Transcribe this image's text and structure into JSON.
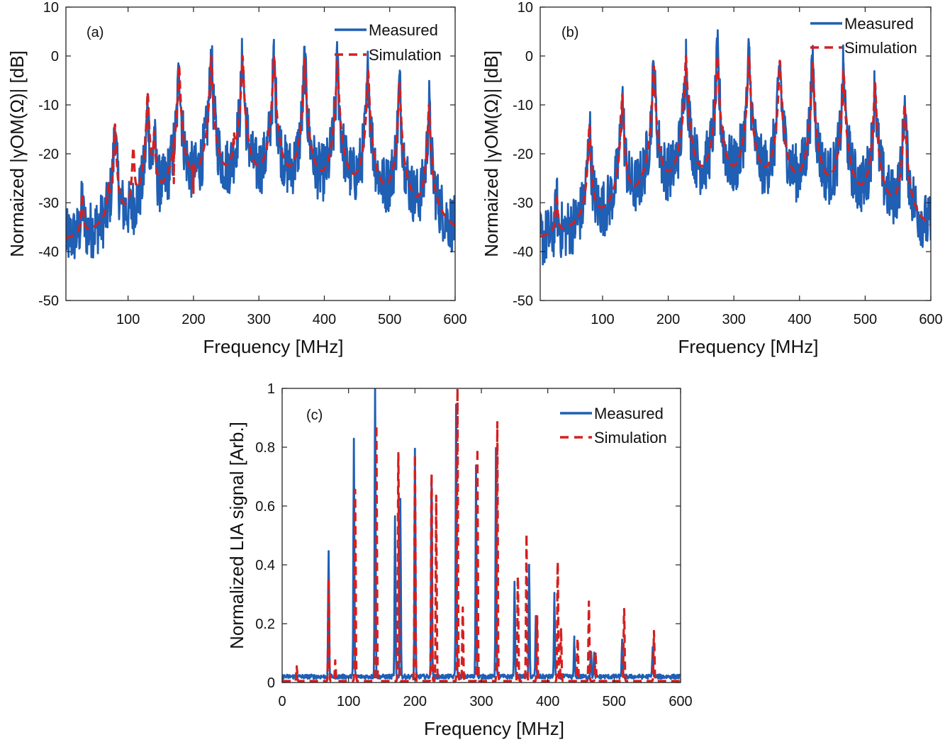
{
  "chart_data": [
    {
      "panel": "(a)",
      "type": "line",
      "xlabel": "Frequency [MHz]",
      "ylabel": "Normaized |γOM(Ω)| [dB]",
      "xlim": [
        5,
        600
      ],
      "ylim": [
        -50,
        10
      ],
      "xticks": [
        100,
        200,
        300,
        400,
        500,
        600
      ],
      "yticks": [
        -50,
        -40,
        -30,
        -20,
        -10,
        0,
        10
      ],
      "legend_position": "top-right",
      "series": [
        {
          "name": "Measured",
          "style": "solid",
          "color": "#1f5fb4",
          "peaks": [
            [
              30,
              -30
            ],
            [
              80,
              -14
            ],
            [
              130,
              -10
            ],
            [
              140,
              -16
            ],
            [
              178,
              -2
            ],
            [
              227,
              0
            ],
            [
              275,
              0
            ],
            [
              323,
              -0.5
            ],
            [
              370,
              -1
            ],
            [
              420,
              -1.5
            ],
            [
              467,
              -3
            ],
            [
              515,
              -5.5
            ],
            [
              560,
              -10
            ]
          ],
          "baseline": -43,
          "noise": 6
        },
        {
          "name": "Simulation",
          "style": "dashed",
          "color": "#d42020",
          "peaks": [
            [
              30,
              -29
            ],
            [
              70,
              -28
            ],
            [
              80,
              -14
            ],
            [
              108,
              -19
            ],
            [
              130,
              -7.5
            ],
            [
              140,
              -16
            ],
            [
              170,
              -26
            ],
            [
              178,
              -2
            ],
            [
              200,
              -28
            ],
            [
              227,
              0
            ],
            [
              262,
              -18
            ],
            [
              275,
              0
            ],
            [
              323,
              0
            ],
            [
              370,
              -0.5
            ],
            [
              420,
              -1
            ],
            [
              467,
              -3
            ],
            [
              515,
              -5.5
            ],
            [
              560,
              -10
            ]
          ],
          "baseline": -44,
          "noise": 0
        }
      ]
    },
    {
      "panel": "(b)",
      "type": "line",
      "xlabel": "Frequency [MHz]",
      "ylabel": "Normaized |γOM(Ω)| [dB]",
      "xlim": [
        5,
        600
      ],
      "ylim": [
        -50,
        10
      ],
      "xticks": [
        100,
        200,
        300,
        400,
        500,
        600
      ],
      "yticks": [
        -50,
        -40,
        -30,
        -20,
        -10,
        0,
        10
      ],
      "legend_position": "top-right",
      "series": [
        {
          "name": "Measured",
          "style": "solid",
          "color": "#1f5fb4",
          "peaks": [
            [
              30,
              -30
            ],
            [
              80,
              -14
            ],
            [
              130,
              -8
            ],
            [
              178,
              -2
            ],
            [
              227,
              0
            ],
            [
              275,
              0
            ],
            [
              323,
              0
            ],
            [
              370,
              -1
            ],
            [
              420,
              -1.5
            ],
            [
              467,
              -3
            ],
            [
              515,
              -5.5
            ],
            [
              560,
              -10
            ]
          ],
          "baseline": -44,
          "noise": 6
        },
        {
          "name": "Simulation",
          "style": "dashed",
          "color": "#d42020",
          "peaks": [
            [
              30,
              -29
            ],
            [
              80,
              -14
            ],
            [
              130,
              -8
            ],
            [
              178,
              -2
            ],
            [
              227,
              0
            ],
            [
              275,
              0
            ],
            [
              323,
              0
            ],
            [
              370,
              -1
            ],
            [
              420,
              -1.5
            ],
            [
              467,
              -3
            ],
            [
              515,
              -5.5
            ],
            [
              560,
              -10
            ]
          ],
          "baseline": -42,
          "noise": 0
        }
      ]
    },
    {
      "panel": "(c)",
      "type": "line",
      "xlabel": "Frequency [MHz]",
      "ylabel": "Normalized LIA signal [Arb.]",
      "xlim": [
        0,
        600
      ],
      "ylim": [
        0,
        1
      ],
      "xticks": [
        0,
        100,
        200,
        300,
        400,
        500,
        600
      ],
      "yticks": [
        0,
        0.2,
        0.4,
        0.6,
        0.8,
        1
      ],
      "ytick_labels": [
        "0",
        "0.2",
        "0.4",
        "0.6",
        "0.8",
        "1"
      ],
      "legend_position": "top-right",
      "series": [
        {
          "name": "Measured",
          "style": "solid",
          "color": "#1f5fb4",
          "peaks": [
            [
              70,
              0.43
            ],
            [
              108,
              0.81
            ],
            [
              140,
              1.0
            ],
            [
              170,
              0.54
            ],
            [
              178,
              0.6
            ],
            [
              200,
              0.78
            ],
            [
              225,
              0.68
            ],
            [
              262,
              0.92
            ],
            [
              292,
              0.72
            ],
            [
              322,
              0.77
            ],
            [
              350,
              0.33
            ],
            [
              372,
              0.38
            ],
            [
              382,
              0.2
            ],
            [
              410,
              0.28
            ],
            [
              440,
              0.13
            ],
            [
              465,
              0.1
            ],
            [
              470,
              0.08
            ],
            [
              512,
              0.13
            ],
            [
              558,
              0.1
            ]
          ],
          "baseline": 0.02,
          "noise": 0.015
        },
        {
          "name": "Simulation",
          "style": "dashed",
          "color": "#d42020",
          "peaks": [
            [
              22,
              0.05
            ],
            [
              70,
              0.35
            ],
            [
              80,
              0.07
            ],
            [
              110,
              0.65
            ],
            [
              142,
              0.87
            ],
            [
              175,
              0.78
            ],
            [
              200,
              0.77
            ],
            [
              225,
              0.71
            ],
            [
              232,
              0.63
            ],
            [
              264,
              1.0
            ],
            [
              272,
              0.25
            ],
            [
              294,
              0.79
            ],
            [
              324,
              0.88
            ],
            [
              355,
              0.36
            ],
            [
              368,
              0.5
            ],
            [
              384,
              0.22
            ],
            [
              415,
              0.41
            ],
            [
              420,
              0.18
            ],
            [
              445,
              0.15
            ],
            [
              462,
              0.27
            ],
            [
              472,
              0.1
            ],
            [
              515,
              0.25
            ],
            [
              560,
              0.17
            ]
          ],
          "baseline": 0.005,
          "noise": 0
        }
      ]
    }
  ]
}
